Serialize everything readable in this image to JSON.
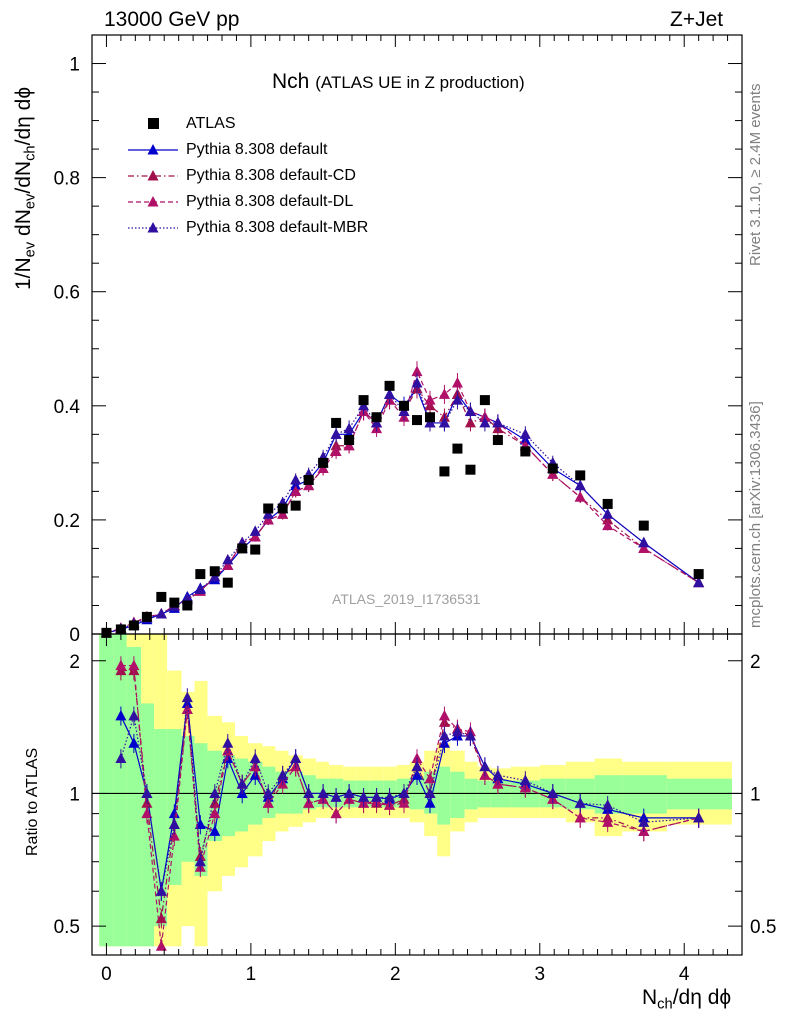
{
  "header": {
    "left": "13000 GeV pp",
    "right": "Z+Jet"
  },
  "side_text": {
    "rivet": "Rivet 3.1.10, ≥ 2.4M events",
    "mcplots": "mcplots.cern.ch [arXiv:1306.3436]"
  },
  "plot_title": {
    "main": "Nch",
    "sub": "(ATLAS UE in Z production)"
  },
  "watermark": "ATLAS_2019_I1736531",
  "axis_text": {
    "ylabel_top": {
      "a": "1/N",
      "a_sub": "ev",
      "b": " dN",
      "b_sub": "ev",
      "c": "/dN",
      "c_sub": "ch",
      "d": "/dη dϕ"
    },
    "ylabel_bottom": "Ratio to ATLAS",
    "xlabel": {
      "a": "N",
      "a_sub": "ch",
      "b": "/dη dϕ"
    }
  },
  "colors": {
    "data": "#000000",
    "default": "#0000cc",
    "cd": "#a0104a",
    "dl": "#b01068",
    "mbr": "#3010a0",
    "band_green": "#99ff99",
    "band_yellow": "#ffff88"
  },
  "chart_data": [
    {
      "type": "scatter",
      "panel": "main",
      "xlim": [
        -0.1,
        4.4
      ],
      "ylim": [
        0,
        1.05
      ],
      "yticks": [
        0,
        0.2,
        0.4,
        0.6,
        0.8,
        1
      ],
      "ytick_labels": [
        "0",
        "0.2",
        "0.4",
        "0.6",
        "0.8",
        "1"
      ],
      "xticks": [
        0,
        1,
        2,
        3,
        4
      ],
      "xtick_labels": [
        "0",
        "1",
        "2",
        "3",
        "4"
      ],
      "x": [
        0,
        0.1,
        0.19,
        0.28,
        0.38,
        0.47,
        0.56,
        0.65,
        0.75,
        0.84,
        0.94,
        1.03,
        1.12,
        1.22,
        1.31,
        1.4,
        1.5,
        1.59,
        1.68,
        1.78,
        1.87,
        1.96,
        2.06,
        2.15,
        2.24,
        2.34,
        2.43,
        2.52,
        2.62,
        2.71,
        2.9,
        3.09,
        3.28,
        3.47,
        3.72,
        4.1
      ],
      "legend": [
        "ATLAS",
        "Pythia 8.308 default",
        "Pythia 8.308 default-CD",
        "Pythia 8.308 default-DL",
        "Pythia 8.308 default-MBR"
      ],
      "series": [
        {
          "name": "ATLAS",
          "style": "square",
          "values": [
            0.002,
            0.008,
            0.015,
            0.03,
            0.065,
            0.055,
            0.05,
            0.105,
            0.11,
            0.09,
            0.15,
            0.148,
            0.22,
            0.22,
            0.225,
            0.27,
            0.3,
            0.37,
            0.34,
            0.41,
            0.38,
            0.435,
            0.4,
            0.375,
            0.38,
            0.285,
            0.325,
            0.288,
            0.41,
            0.34,
            0.32,
            0.29,
            0.278,
            0.228,
            0.19,
            0.105
          ]
        },
        {
          "name": "Pythia 8.308 default",
          "style": "solid",
          "values": [
            0.002,
            0.008,
            0.015,
            0.025,
            0.035,
            0.045,
            0.065,
            0.08,
            0.095,
            0.12,
            0.15,
            0.17,
            0.2,
            0.22,
            0.26,
            0.27,
            0.3,
            0.35,
            0.35,
            0.39,
            0.37,
            0.42,
            0.4,
            0.43,
            0.37,
            0.37,
            0.42,
            0.39,
            0.38,
            0.37,
            0.34,
            0.29,
            0.26,
            0.21,
            0.16,
            0.09
          ]
        },
        {
          "name": "Pythia 8.308 default-CD",
          "style": "dashdot",
          "values": [
            0.002,
            0.01,
            0.02,
            0.03,
            0.035,
            0.05,
            0.06,
            0.075,
            0.1,
            0.12,
            0.16,
            0.17,
            0.2,
            0.21,
            0.25,
            0.26,
            0.29,
            0.33,
            0.33,
            0.39,
            0.37,
            0.41,
            0.39,
            0.43,
            0.4,
            0.38,
            0.42,
            0.37,
            0.38,
            0.36,
            0.33,
            0.28,
            0.24,
            0.2,
            0.15,
            0.09
          ]
        },
        {
          "name": "Pythia 8.308 default-DL",
          "style": "dashed",
          "values": [
            0.002,
            0.01,
            0.02,
            0.03,
            0.035,
            0.05,
            0.06,
            0.075,
            0.1,
            0.12,
            0.16,
            0.17,
            0.2,
            0.21,
            0.25,
            0.26,
            0.29,
            0.32,
            0.33,
            0.39,
            0.36,
            0.41,
            0.38,
            0.46,
            0.41,
            0.42,
            0.44,
            0.39,
            0.38,
            0.37,
            0.33,
            0.28,
            0.24,
            0.19,
            0.15,
            0.09
          ]
        },
        {
          "name": "Pythia 8.308 default-MBR",
          "style": "dotted",
          "values": [
            0.002,
            0.009,
            0.018,
            0.028,
            0.035,
            0.048,
            0.062,
            0.078,
            0.1,
            0.13,
            0.16,
            0.18,
            0.21,
            0.23,
            0.27,
            0.28,
            0.31,
            0.35,
            0.36,
            0.4,
            0.37,
            0.42,
            0.39,
            0.44,
            0.37,
            0.37,
            0.41,
            0.39,
            0.37,
            0.37,
            0.35,
            0.3,
            0.26,
            0.21,
            0.16,
            0.09
          ]
        }
      ]
    },
    {
      "type": "scatter",
      "panel": "ratio",
      "ylabel": "Ratio to ATLAS",
      "xlim": [
        -0.1,
        4.4
      ],
      "ylim": [
        0.43,
        2.3
      ],
      "log_y": true,
      "yticks": [
        0.5,
        1,
        2
      ],
      "ytick_labels": [
        "0.5",
        "1",
        "2"
      ],
      "xticks": [
        0,
        1,
        2,
        3,
        4
      ],
      "xtick_labels": [
        "0",
        "1",
        "2",
        "3",
        "4"
      ],
      "x": [
        0.1,
        0.19,
        0.28,
        0.38,
        0.47,
        0.56,
        0.65,
        0.75,
        0.84,
        0.94,
        1.03,
        1.12,
        1.22,
        1.31,
        1.4,
        1.5,
        1.59,
        1.68,
        1.78,
        1.87,
        1.96,
        2.06,
        2.15,
        2.24,
        2.34,
        2.43,
        2.52,
        2.62,
        2.71,
        2.9,
        3.09,
        3.28,
        3.47,
        3.72,
        4.1
      ],
      "bands": [
        {
          "x0": -0.05,
          "x1": 0.05,
          "g": [
            0.45,
            2.3
          ],
          "yel": [
            0.45,
            2.3
          ]
        },
        {
          "x0": 0.05,
          "x1": 0.14,
          "g": [
            0.45,
            2.3
          ],
          "yel": [
            0.45,
            2.3
          ]
        },
        {
          "x0": 0.14,
          "x1": 0.24,
          "g": [
            0.45,
            2.15
          ],
          "yel": [
            0.45,
            2.3
          ]
        },
        {
          "x0": 0.24,
          "x1": 0.33,
          "g": [
            0.45,
            1.6
          ],
          "yel": [
            0.45,
            2.3
          ]
        },
        {
          "x0": 0.33,
          "x1": 0.42,
          "g": [
            0.5,
            1.4
          ],
          "yel": [
            0.45,
            2.3
          ]
        },
        {
          "x0": 0.42,
          "x1": 0.52,
          "g": [
            0.62,
            1.4
          ],
          "yel": [
            0.45,
            1.9
          ]
        },
        {
          "x0": 0.52,
          "x1": 0.61,
          "g": [
            0.7,
            1.35
          ],
          "yel": [
            0.5,
            1.7
          ]
        },
        {
          "x0": 0.61,
          "x1": 0.7,
          "g": [
            0.65,
            1.3
          ],
          "yel": [
            0.45,
            1.8
          ]
        },
        {
          "x0": 0.7,
          "x1": 0.8,
          "g": [
            0.78,
            1.25
          ],
          "yel": [
            0.6,
            1.5
          ]
        },
        {
          "x0": 0.8,
          "x1": 0.89,
          "g": [
            0.8,
            1.22
          ],
          "yel": [
            0.65,
            1.45
          ]
        },
        {
          "x0": 0.89,
          "x1": 0.98,
          "g": [
            0.82,
            1.2
          ],
          "yel": [
            0.68,
            1.35
          ]
        },
        {
          "x0": 0.98,
          "x1": 1.08,
          "g": [
            0.85,
            1.18
          ],
          "yel": [
            0.72,
            1.3
          ]
        },
        {
          "x0": 1.08,
          "x1": 1.17,
          "g": [
            0.88,
            1.15
          ],
          "yel": [
            0.78,
            1.28
          ]
        },
        {
          "x0": 1.17,
          "x1": 1.26,
          "g": [
            0.9,
            1.12
          ],
          "yel": [
            0.82,
            1.25
          ]
        },
        {
          "x0": 1.26,
          "x1": 1.36,
          "g": [
            0.9,
            1.12
          ],
          "yel": [
            0.84,
            1.22
          ]
        },
        {
          "x0": 1.36,
          "x1": 1.45,
          "g": [
            0.92,
            1.1
          ],
          "yel": [
            0.86,
            1.2
          ]
        },
        {
          "x0": 1.45,
          "x1": 1.54,
          "g": [
            0.93,
            1.08
          ],
          "yel": [
            0.88,
            1.18
          ]
        },
        {
          "x0": 1.54,
          "x1": 1.64,
          "g": [
            0.93,
            1.08
          ],
          "yel": [
            0.88,
            1.16
          ]
        },
        {
          "x0": 1.64,
          "x1": 1.73,
          "g": [
            0.93,
            1.07
          ],
          "yel": [
            0.88,
            1.15
          ]
        },
        {
          "x0": 1.73,
          "x1": 1.82,
          "g": [
            0.93,
            1.07
          ],
          "yel": [
            0.88,
            1.15
          ]
        },
        {
          "x0": 1.82,
          "x1": 1.92,
          "g": [
            0.93,
            1.07
          ],
          "yel": [
            0.88,
            1.15
          ]
        },
        {
          "x0": 1.92,
          "x1": 2.01,
          "g": [
            0.93,
            1.07
          ],
          "yel": [
            0.88,
            1.15
          ]
        },
        {
          "x0": 2.01,
          "x1": 2.1,
          "g": [
            0.93,
            1.08
          ],
          "yel": [
            0.88,
            1.16
          ]
        },
        {
          "x0": 2.1,
          "x1": 2.2,
          "g": [
            0.92,
            1.09
          ],
          "yel": [
            0.86,
            1.18
          ]
        },
        {
          "x0": 2.2,
          "x1": 2.29,
          "g": [
            0.9,
            1.12
          ],
          "yel": [
            0.8,
            1.25
          ]
        },
        {
          "x0": 2.29,
          "x1": 2.38,
          "g": [
            0.85,
            1.15
          ],
          "yel": [
            0.72,
            1.3
          ]
        },
        {
          "x0": 2.38,
          "x1": 2.48,
          "g": [
            0.88,
            1.12
          ],
          "yel": [
            0.82,
            1.25
          ]
        },
        {
          "x0": 2.48,
          "x1": 2.57,
          "g": [
            0.92,
            1.08
          ],
          "yel": [
            0.86,
            1.18
          ]
        },
        {
          "x0": 2.57,
          "x1": 2.66,
          "g": [
            0.93,
            1.07
          ],
          "yel": [
            0.88,
            1.15
          ]
        },
        {
          "x0": 2.66,
          "x1": 2.8,
          "g": [
            0.93,
            1.07
          ],
          "yel": [
            0.88,
            1.14
          ]
        },
        {
          "x0": 2.8,
          "x1": 3.0,
          "g": [
            0.93,
            1.07
          ],
          "yel": [
            0.88,
            1.15
          ]
        },
        {
          "x0": 3.0,
          "x1": 3.18,
          "g": [
            0.93,
            1.08
          ],
          "yel": [
            0.88,
            1.16
          ]
        },
        {
          "x0": 3.18,
          "x1": 3.38,
          "g": [
            0.92,
            1.08
          ],
          "yel": [
            0.86,
            1.18
          ]
        },
        {
          "x0": 3.38,
          "x1": 3.57,
          "g": [
            0.9,
            1.1
          ],
          "yel": [
            0.8,
            1.2
          ]
        },
        {
          "x0": 3.57,
          "x1": 3.88,
          "g": [
            0.9,
            1.1
          ],
          "yel": [
            0.82,
            1.18
          ]
        },
        {
          "x0": 3.88,
          "x1": 4.33,
          "g": [
            0.92,
            1.08
          ],
          "yel": [
            0.85,
            1.18
          ]
        }
      ],
      "series": [
        {
          "name": "Pythia 8.308 default",
          "style": "solid",
          "values": [
            1.5,
            1.3,
            1.0,
            0.6,
            0.9,
            1.6,
            0.85,
            0.82,
            1.2,
            1.0,
            1.1,
            0.98,
            1.08,
            1.2,
            1.0,
            1.0,
            0.98,
            1.0,
            0.98,
            0.98,
            0.97,
            1.0,
            1.1,
            0.95,
            1.3,
            1.35,
            1.35,
            1.15,
            1.08,
            1.05,
            1.0,
            0.95,
            0.92,
            0.88,
            0.88
          ]
        },
        {
          "name": "Pythia 8.308 default-CD",
          "style": "dashdot",
          "values": [
            1.9,
            1.9,
            0.95,
            0.52,
            0.85,
            1.55,
            0.72,
            0.95,
            1.25,
            1.05,
            1.15,
            0.95,
            1.1,
            1.15,
            0.95,
            0.97,
            0.9,
            0.97,
            0.95,
            0.95,
            0.94,
            0.97,
            1.15,
            1.0,
            1.45,
            1.4,
            1.35,
            1.1,
            1.05,
            1.03,
            0.97,
            0.88,
            0.88,
            0.82,
            0.88
          ]
        },
        {
          "name": "Pythia 8.308 default-DL",
          "style": "dashed",
          "values": [
            1.95,
            1.95,
            0.9,
            0.45,
            0.8,
            1.55,
            0.68,
            0.9,
            1.25,
            1.05,
            1.15,
            0.95,
            1.05,
            1.15,
            0.95,
            0.97,
            0.9,
            0.97,
            0.95,
            0.96,
            0.94,
            0.95,
            1.2,
            1.08,
            1.5,
            1.4,
            1.38,
            1.1,
            1.05,
            1.03,
            0.97,
            0.88,
            0.86,
            0.82,
            0.88
          ]
        },
        {
          "name": "Pythia 8.308 default-MBR",
          "style": "dotted",
          "values": [
            1.2,
            1.5,
            1.0,
            0.6,
            0.85,
            1.65,
            0.7,
            1.0,
            1.3,
            1.05,
            1.2,
            1.0,
            1.1,
            1.2,
            1.0,
            1.0,
            0.98,
            1.0,
            0.98,
            0.98,
            0.98,
            1.0,
            1.15,
            1.0,
            1.35,
            1.38,
            1.35,
            1.15,
            1.1,
            1.07,
            1.0,
            0.95,
            0.94,
            0.86,
            0.88
          ]
        }
      ]
    }
  ]
}
